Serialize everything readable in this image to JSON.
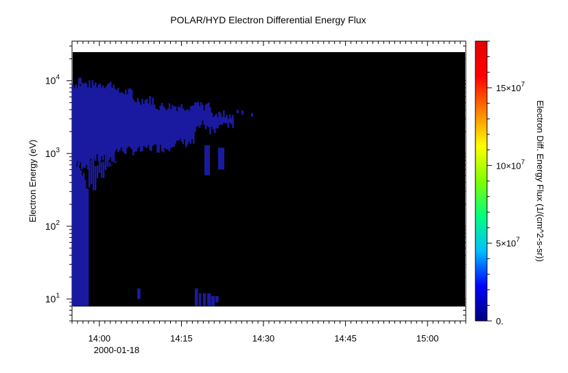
{
  "chart_data": {
    "type": "heatmap",
    "title": "POLAR/HYD  Electron Differential Energy Flux",
    "xlabel": "",
    "ylabel": "Electron Energy (eV)",
    "x_axis": {
      "ticks": [
        "14:00",
        "14:15",
        "14:30",
        "14:45",
        "15:00"
      ],
      "date_label": "2000-01-18",
      "range": [
        "13:55",
        "15:07"
      ]
    },
    "y_axis": {
      "scale": "log",
      "range": [
        5,
        35000
      ],
      "ticks": [
        {
          "base": "10",
          "exp": "1"
        },
        {
          "base": "10",
          "exp": "2"
        },
        {
          "base": "10",
          "exp": "3"
        },
        {
          "base": "10",
          "exp": "4"
        }
      ]
    },
    "colorbar": {
      "label": "Electron Diff. Energy Flux (1/(cm^2-s-sr))",
      "range": [
        0,
        180000000
      ],
      "colormap": [
        "#00007f",
        "#0000ff",
        "#00bfff",
        "#00ff7f",
        "#7fff00",
        "#ffff00",
        "#ff7f00",
        "#ff0000",
        "#e60000"
      ],
      "ticks": [
        {
          "mant": "0.",
          "exp": ""
        },
        {
          "mant": "5×10",
          "exp": "7"
        },
        {
          "mant": "10×10",
          "exp": "7"
        },
        {
          "mant": "15×10",
          "exp": "7"
        }
      ]
    },
    "background_color": "#000000",
    "data_color": "#1a1aa0",
    "data_description_regions": [
      {
        "t_start": "13:55",
        "t_end": "14:20",
        "e_low": 1000,
        "e_high": 9000,
        "level": 2000000
      },
      {
        "t_start": "13:55",
        "t_end": "13:58",
        "e_low": 8,
        "e_high": 1000,
        "level": 2000000
      }
    ]
  }
}
